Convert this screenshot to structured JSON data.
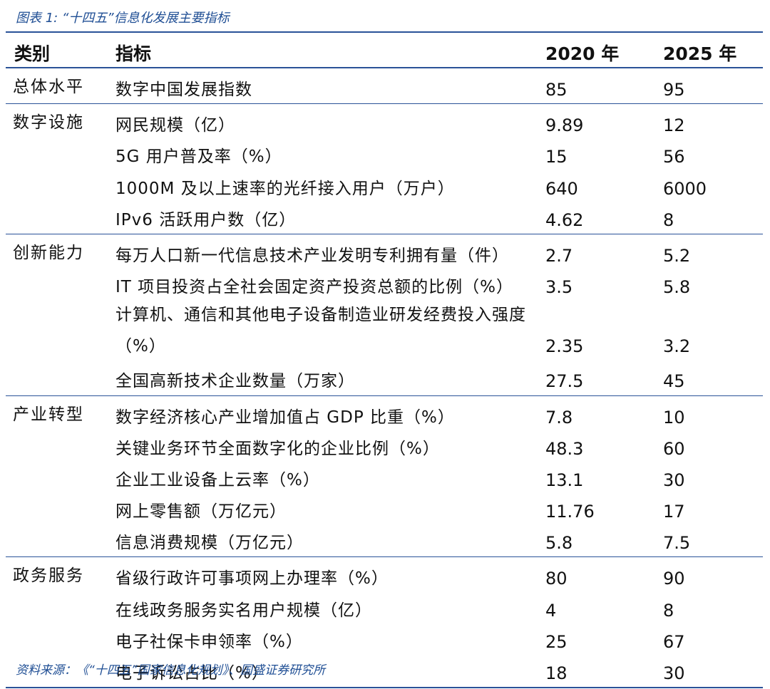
{
  "caption": "图表 1:  “十四五”信息化发展主要指标",
  "headers": {
    "category": "类别",
    "indicator": "指标",
    "y2020": "2020 年",
    "y2025": "2025 年"
  },
  "groups": [
    {
      "category": "总体水平",
      "rows": [
        {
          "indicator": "数字中国发展指数",
          "v2020": "85",
          "v2025": "95"
        }
      ]
    },
    {
      "category": "数字设施",
      "rows": [
        {
          "indicator": "网民规模（亿）",
          "v2020": "9.89",
          "v2025": "12"
        },
        {
          "indicator": "5G 用户普及率（%）",
          "v2020": "15",
          "v2025": "56"
        },
        {
          "indicator": "1000M 及以上速率的光纤接入用户（万户）",
          "v2020": "640",
          "v2025": "6000"
        },
        {
          "indicator": "IPv6 活跃用户数（亿）",
          "v2020": "4.62",
          "v2025": "8"
        }
      ]
    },
    {
      "category": "创新能力",
      "rows": [
        {
          "indicator": "每万人口新一代信息技术产业发明专利拥有量（件）",
          "v2020": "2.7",
          "v2025": "5.2"
        },
        {
          "indicator": "IT 项目投资占全社会固定资产投资总额的比例（%）",
          "v2020": "3.5",
          "v2025": "5.8"
        },
        {
          "indicator": "计算机、通信和其他电子设备制造业研发经费投入强度（%）",
          "v2020": "2.35",
          "v2025": "3.2"
        },
        {
          "indicator": "全国高新技术企业数量（万家）",
          "v2020": "27.5",
          "v2025": "45"
        }
      ]
    },
    {
      "category": "产业转型",
      "rows": [
        {
          "indicator": "数字经济核心产业增加值占 GDP 比重（%）",
          "v2020": "7.8",
          "v2025": "10"
        },
        {
          "indicator": "关键业务环节全面数字化的企业比例（%）",
          "v2020": "48.3",
          "v2025": "60"
        },
        {
          "indicator": "企业工业设备上云率（%）",
          "v2020": "13.1",
          "v2025": "30"
        },
        {
          "indicator": "网上零售额（万亿元）",
          "v2020": "11.76",
          "v2025": "17"
        },
        {
          "indicator": "信息消费规模（万亿元）",
          "v2020": "5.8",
          "v2025": "7.5"
        }
      ]
    },
    {
      "category": "政务服务",
      "rows": [
        {
          "indicator": "省级行政许可事项网上办理率（%）",
          "v2020": "80",
          "v2025": "90"
        },
        {
          "indicator": "在线政务服务实名用户规模（亿）",
          "v2020": "4",
          "v2025": "8"
        },
        {
          "indicator": "电子社保卡申领率（%）",
          "v2020": "25",
          "v2025": "67"
        },
        {
          "indicator": "电子诉讼占比（%）",
          "v2020": "18",
          "v2025": "30"
        }
      ]
    }
  ],
  "source": "资料来源：《“十四五”国家信息化规划》、国盛证券研究所",
  "colors": {
    "accent": "#2a5298",
    "caption": "#1f4e94"
  }
}
